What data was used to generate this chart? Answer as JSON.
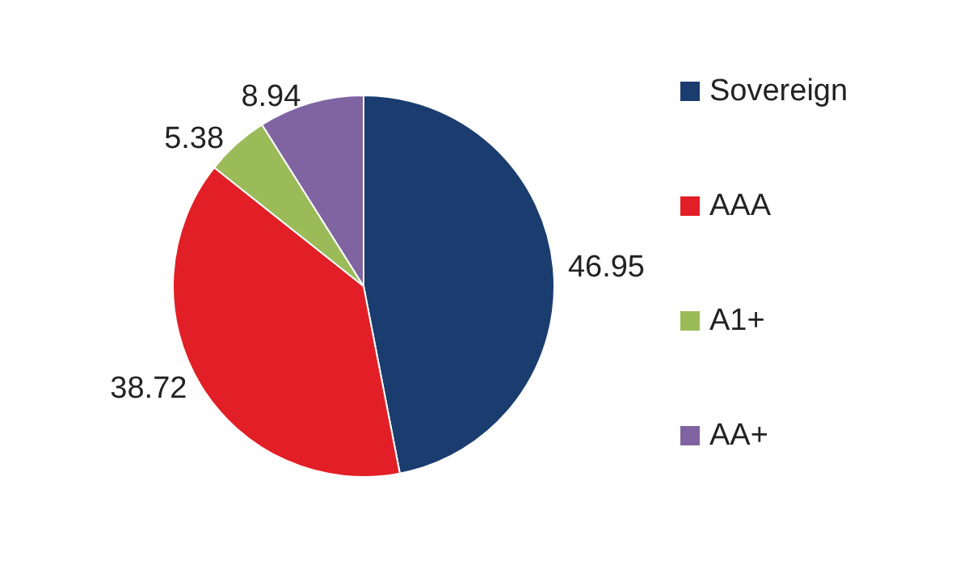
{
  "chart_data": {
    "type": "pie",
    "categories": [
      "Sovereign",
      "AAA",
      "A1+",
      "AA+"
    ],
    "values": [
      46.95,
      38.72,
      5.38,
      8.94
    ],
    "colors": [
      "#1b3c6f",
      "#e21f26",
      "#9bbb59",
      "#8064a2"
    ],
    "data_labels": true,
    "legend": "right"
  }
}
